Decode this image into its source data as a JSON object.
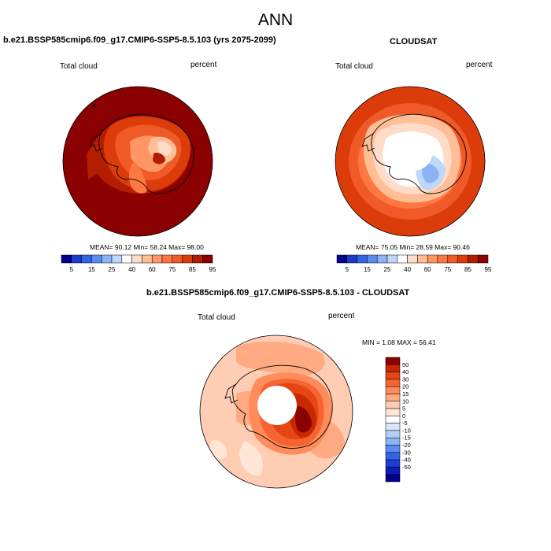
{
  "figure_title": "ANN",
  "colors": {
    "abs_scale": [
      "#00008b",
      "#1e3cc8",
      "#3264e6",
      "#5a8cf0",
      "#8cb4f5",
      "#bed7fa",
      "#ffffff",
      "#ffdcc8",
      "#ffbe96",
      "#ff9664",
      "#ff7841",
      "#f05a28",
      "#dc3c0a",
      "#b41e00",
      "#8b0000"
    ],
    "diff_scale": [
      "#00008b",
      "#0a1eb4",
      "#1e3cd2",
      "#3264e6",
      "#5a8cf0",
      "#8cb4f5",
      "#b4cdfa",
      "#d7e6fc",
      "#ffffff",
      "#ffe6d7",
      "#ffcdb4",
      "#ffaa82",
      "#ff8c5a",
      "#f56432",
      "#e64614",
      "#c82800",
      "#8b0000"
    ]
  },
  "panels": [
    {
      "title": "b.e21.BSSP585cmip6.f09_g17.CMIP6-SSP5-8.5.103 (yrs 2075-2099)",
      "left_label": "Total cloud",
      "right_label": "percent",
      "stats": "MEAN=  90.12  Min=  58.24  Max=  98.00",
      "colorbar_ticks": [
        "5",
        "15",
        "25",
        "40",
        "60",
        "75",
        "85",
        "95"
      ]
    },
    {
      "title": "CLOUDSAT",
      "left_label": "Total cloud",
      "right_label": "percent",
      "stats": "MEAN=  75.05  Min=  28.59  Max=  90.46",
      "colorbar_ticks": [
        "5",
        "15",
        "25",
        "40",
        "60",
        "75",
        "85",
        "95"
      ]
    },
    {
      "title": "b.e21.BSSP585cmip6.f09_g17.CMIP6-SSP5-8.5.103 - CLOUDSAT",
      "left_label": "Total cloud",
      "right_label": "percent",
      "stats": "MIN =  1.08 MAX =  56.41",
      "colorbar_ticks": [
        "50",
        "40",
        "30",
        "20",
        "15",
        "10",
        "5",
        "0",
        "-5",
        "-10",
        "-15",
        "-20",
        "-30",
        "-40",
        "-50"
      ]
    }
  ],
  "chart_data": [
    {
      "type": "heatmap",
      "title": "b.e21.BSSP585cmip6.f09_g17.CMIP6-SSP5-8.5.103 (yrs 2075-2099)",
      "variable": "Total cloud",
      "units": "percent",
      "projection": "south polar stereographic",
      "mean": 90.12,
      "min": 58.24,
      "max": 98.0,
      "levels": [
        5,
        10,
        15,
        20,
        25,
        30,
        40,
        50,
        60,
        70,
        75,
        80,
        85,
        90,
        95
      ]
    },
    {
      "type": "heatmap",
      "title": "CLOUDSAT",
      "variable": "Total cloud",
      "units": "percent",
      "projection": "south polar stereographic",
      "mean": 75.05,
      "min": 28.59,
      "max": 90.46,
      "levels": [
        5,
        10,
        15,
        20,
        25,
        30,
        40,
        50,
        60,
        70,
        75,
        80,
        85,
        90,
        95
      ]
    },
    {
      "type": "heatmap",
      "title": "b.e21.BSSP585cmip6.f09_g17.CMIP6-SSP5-8.5.103 - CLOUDSAT",
      "variable": "Total cloud",
      "units": "percent",
      "projection": "south polar stereographic",
      "min": 1.08,
      "max": 56.41,
      "levels": [
        -50,
        -40,
        -30,
        -20,
        -15,
        -10,
        -5,
        0,
        5,
        10,
        15,
        20,
        30,
        40,
        50
      ]
    }
  ]
}
